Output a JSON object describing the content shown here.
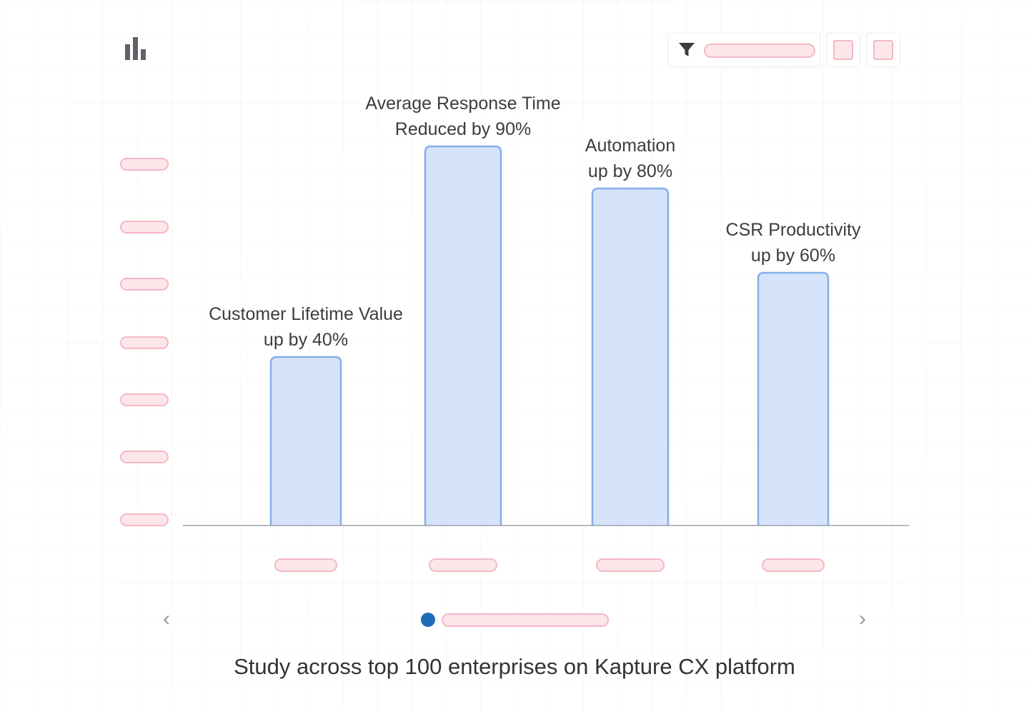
{
  "header": {
    "chart_icon": "bar-chart-icon",
    "filter_icon": "filter-icon"
  },
  "chart_data": {
    "type": "bar",
    "categories": [
      "Customer Lifetime Value",
      "Average Response Time",
      "Automation",
      "CSR Productivity"
    ],
    "values": [
      40,
      90,
      80,
      60
    ],
    "bar_labels": [
      [
        "Customer Lifetime Value",
        "up by 40%"
      ],
      [
        "Average Response Time",
        "Reduced by 90%"
      ],
      [
        "Automation",
        "up by 80%"
      ],
      [
        "CSR Productivity",
        "up by 60%"
      ]
    ],
    "title": "",
    "xlabel": "",
    "ylabel": "",
    "grid": false,
    "colors": {
      "bar_fill": "#d6e4fb",
      "bar_stroke": "#86aee9",
      "axis": "#9aa0a6",
      "placeholder_fill": "#fde6ea",
      "placeholder_stroke": "#f3b9c3"
    }
  },
  "pager": {
    "prev_icon": "chevron-left-icon",
    "next_icon": "chevron-right-icon",
    "active_dot_color": "#1f6bb5"
  },
  "caption": "Study across top 100 enterprises on Kapture CX platform"
}
